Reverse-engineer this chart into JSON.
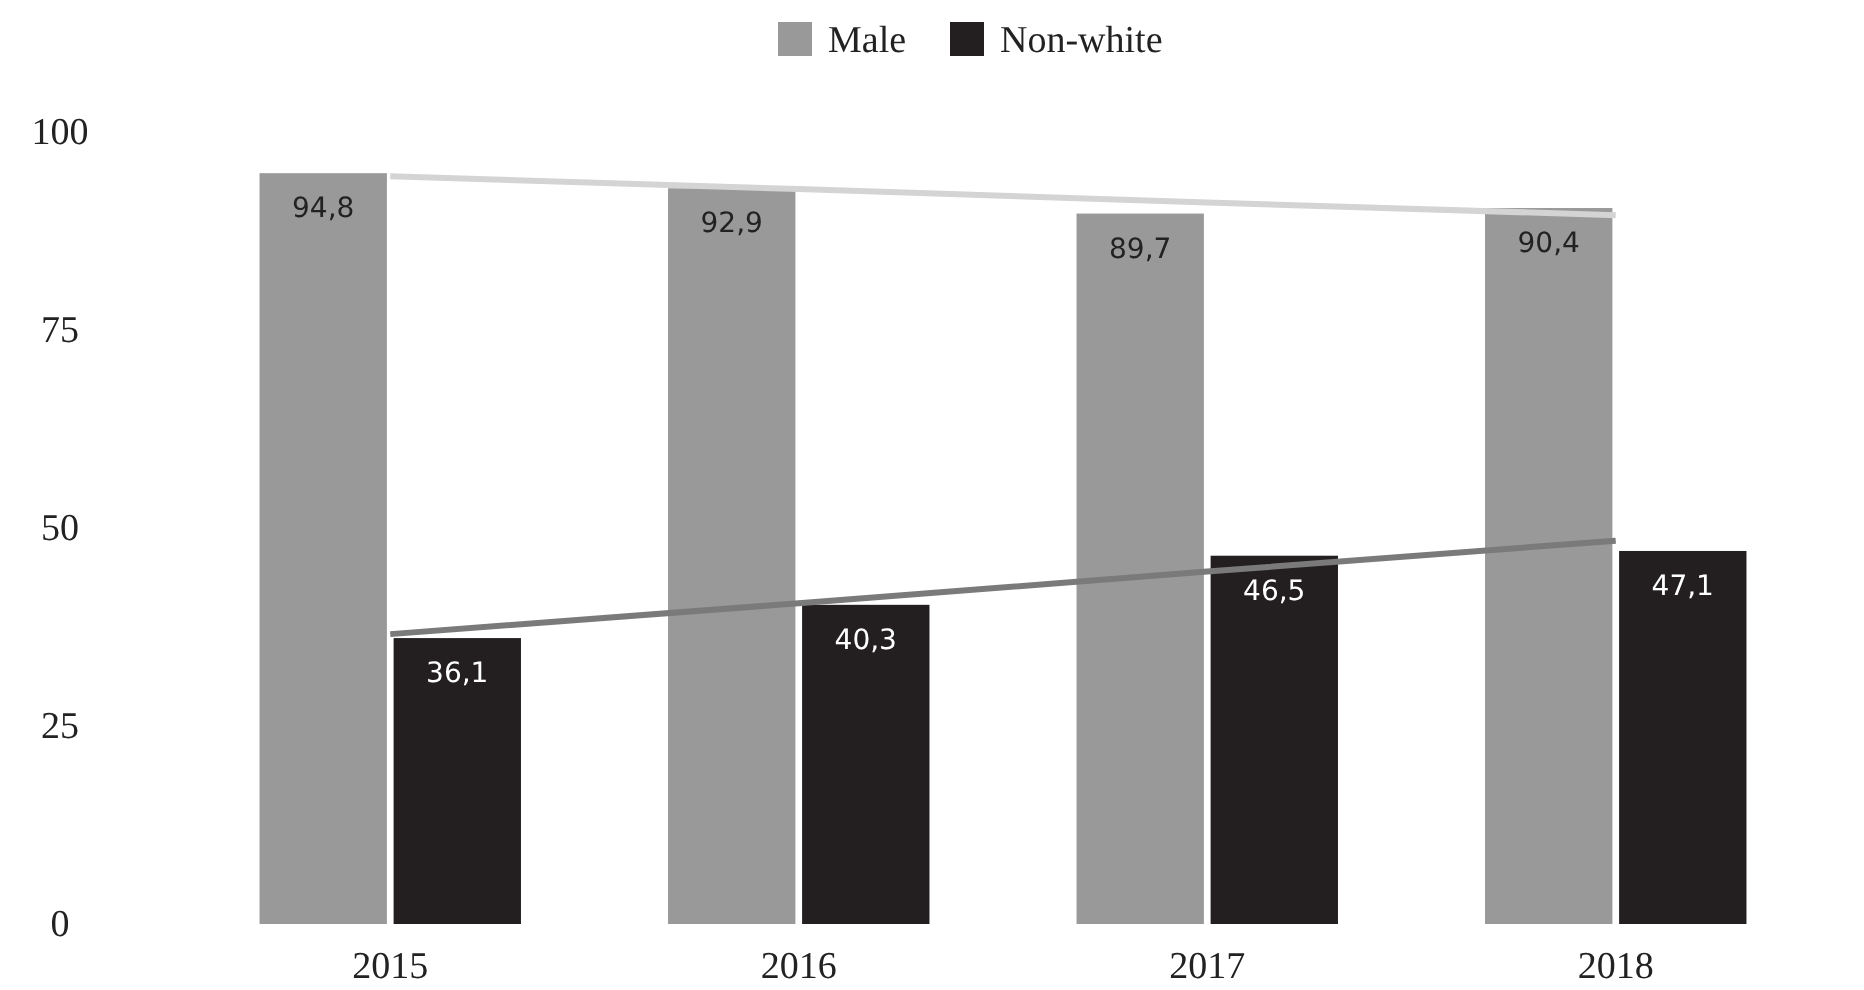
{
  "chart_data": {
    "type": "bar",
    "categories": [
      "2015",
      "2016",
      "2017",
      "2018"
    ],
    "ylim": [
      0,
      100
    ],
    "yticks": [
      0,
      25,
      50,
      75,
      100
    ],
    "grid": false,
    "legend": "top",
    "series": [
      {
        "name": "Male",
        "color": "#999999",
        "values": [
          94.8,
          92.9,
          89.7,
          90.4
        ],
        "value_labels": [
          "94,8",
          "92,9",
          "89,7",
          "90,4"
        ]
      },
      {
        "name": "Non-white",
        "color": "#231f20",
        "values": [
          36.1,
          40.3,
          46.5,
          47.1
        ],
        "value_labels": [
          "36,1",
          "40,3",
          "46,5",
          "47,1"
        ]
      },
      {
        "type": "line",
        "color": "#d4d4d4",
        "values": [
          94.4,
          92.8,
          91.1,
          89.5
        ]
      },
      {
        "type": "line",
        "color": "#7a7a7a",
        "values": [
          36.6,
          40.5,
          44.5,
          48.4
        ]
      }
    ]
  }
}
